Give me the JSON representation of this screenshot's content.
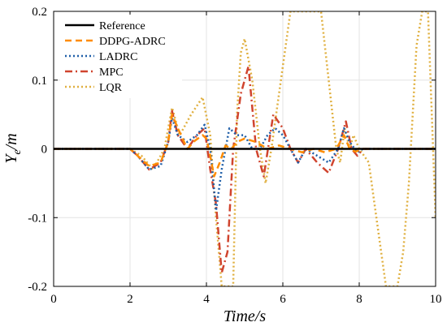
{
  "chart_data": {
    "type": "line",
    "title": "",
    "xlabel": "Time/s",
    "ylabel": "Y_e/m",
    "xlim": [
      0,
      10
    ],
    "ylim": [
      -0.2,
      0.2
    ],
    "xticks": [
      0,
      2,
      4,
      6,
      8,
      10
    ],
    "yticks": [
      -0.2,
      -0.1,
      0,
      0.1,
      0.2
    ],
    "ytick_labels": [
      "-0.2",
      "-0.1",
      "0",
      "0.1",
      "0.2"
    ],
    "xtick_labels": [
      "0",
      "2",
      "4",
      "6",
      "8",
      "10"
    ],
    "grid": true,
    "legend_position": "top-left",
    "series": [
      {
        "name": "Reference",
        "color": "#000000",
        "dash": "solid",
        "x": [
          0,
          10
        ],
        "y": [
          0,
          0
        ]
      },
      {
        "name": "DDPG-ADRC",
        "color": "#ff8c00",
        "dash": "dashed",
        "x": [
          0,
          2.0,
          2.2,
          2.5,
          2.8,
          3.0,
          3.1,
          3.25,
          3.5,
          3.7,
          3.9,
          4.0,
          4.1,
          4.2,
          4.35,
          4.5,
          4.65,
          4.8,
          5.0,
          5.3,
          5.6,
          5.9,
          6.2,
          6.5,
          6.8,
          7.1,
          7.4,
          7.6,
          7.75,
          7.9,
          8.1,
          8.4,
          8.8,
          9.3,
          10
        ],
        "y": [
          0,
          0,
          -0.01,
          -0.025,
          -0.02,
          0.01,
          0.05,
          0.03,
          0.0,
          0.012,
          0.02,
          0.015,
          -0.01,
          -0.04,
          -0.02,
          0.005,
          0.0,
          0.01,
          0.015,
          0.01,
          0.0,
          0.005,
          0.0,
          -0.005,
          0.0,
          -0.005,
          0.0,
          0.02,
          0.0,
          -0.004,
          0.0,
          0.0,
          0.0,
          0.0,
          0
        ]
      },
      {
        "name": "LADRC",
        "color": "#1f5fa8",
        "dash": "dotted",
        "x": [
          0,
          2.0,
          2.2,
          2.5,
          2.8,
          3.0,
          3.1,
          3.25,
          3.5,
          3.75,
          3.95,
          4.1,
          4.25,
          4.4,
          4.6,
          4.8,
          5.0,
          5.2,
          5.4,
          5.6,
          5.8,
          6.0,
          6.2,
          6.4,
          6.6,
          6.9,
          7.2,
          7.45,
          7.6,
          7.75,
          7.95,
          8.1,
          8.4,
          8.8,
          9.3,
          10
        ],
        "y": [
          0,
          0,
          -0.01,
          -0.03,
          -0.025,
          0.01,
          0.045,
          0.02,
          0.01,
          0.02,
          0.035,
          0.0,
          -0.09,
          -0.03,
          0.03,
          0.02,
          0.02,
          0.0,
          0.0,
          0.02,
          0.03,
          0.02,
          0.0,
          -0.02,
          0.0,
          -0.01,
          -0.02,
          0.0,
          0.03,
          0.01,
          -0.005,
          0.0,
          0.0,
          0.0,
          0.0,
          0
        ]
      },
      {
        "name": "MPC",
        "color": "#d0442e",
        "dash": "dashdot",
        "x": [
          0,
          2.0,
          2.2,
          2.5,
          2.8,
          3.0,
          3.1,
          3.25,
          3.5,
          3.75,
          3.95,
          4.1,
          4.25,
          4.4,
          4.55,
          4.7,
          4.9,
          5.1,
          5.3,
          5.5,
          5.75,
          6.0,
          6.2,
          6.4,
          6.6,
          6.9,
          7.2,
          7.45,
          7.65,
          7.8,
          7.95,
          8.1,
          8.4,
          8.8,
          9.3,
          10
        ],
        "y": [
          0,
          0,
          -0.01,
          -0.03,
          -0.02,
          0.01,
          0.055,
          0.02,
          0.0,
          0.02,
          0.03,
          -0.03,
          -0.08,
          -0.18,
          -0.15,
          0.0,
          0.08,
          0.12,
          0.0,
          -0.04,
          0.05,
          0.03,
          0.0,
          -0.02,
          0.0,
          -0.02,
          -0.035,
          0.0,
          0.04,
          0.0,
          -0.01,
          0.0,
          0.0,
          0.0,
          0.0,
          0
        ]
      },
      {
        "name": "LQR",
        "color": "#e0b040",
        "dash": "dotted",
        "x": [
          0,
          2.0,
          2.3,
          2.6,
          2.9,
          3.1,
          3.3,
          3.6,
          3.9,
          4.1,
          4.25,
          4.4,
          4.55,
          4.7,
          4.8,
          4.9,
          5.0,
          5.2,
          5.4,
          5.55,
          5.7,
          5.9,
          6.2,
          6.45,
          6.75,
          7.0,
          7.2,
          7.4,
          7.5,
          7.62,
          7.75,
          7.85,
          8.0,
          8.25,
          8.45,
          8.7,
          9.0,
          9.15,
          9.3,
          9.5,
          9.65,
          9.8,
          10
        ],
        "y": [
          0,
          0,
          -0.01,
          -0.03,
          0.0,
          0.06,
          0.02,
          0.05,
          0.075,
          0.02,
          -0.1,
          -0.2,
          -0.2,
          -0.2,
          0.05,
          0.14,
          0.16,
          0.1,
          0.0,
          -0.05,
          0.0,
          0.08,
          0.2,
          0.2,
          0.2,
          0.2,
          0.1,
          0.0,
          -0.02,
          0.03,
          0.0,
          0.02,
          0.0,
          -0.02,
          -0.1,
          -0.2,
          -0.2,
          -0.15,
          -0.05,
          0.15,
          0.2,
          0.2,
          -0.1
        ]
      }
    ]
  }
}
